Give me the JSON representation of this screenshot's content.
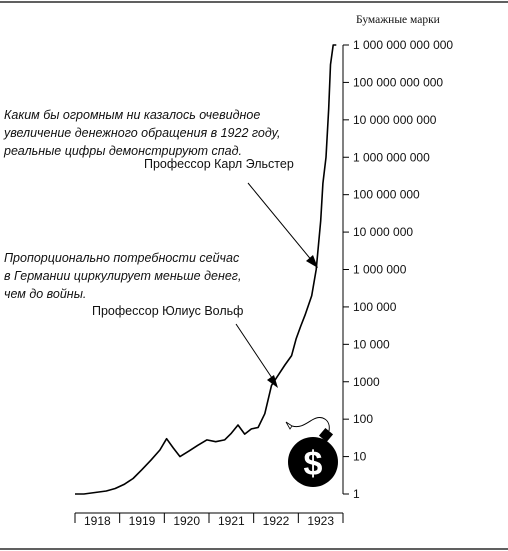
{
  "chart_data": {
    "type": "line",
    "title": "",
    "y_unit_title": "Бумажные марки",
    "xlabel": "",
    "ylabel": "",
    "y_scale": "log",
    "ylim": [
      1,
      1000000000000
    ],
    "y_ticks": [
      {
        "value": 1,
        "label": "1"
      },
      {
        "value": 10,
        "label": "10"
      },
      {
        "value": 100,
        "label": "100"
      },
      {
        "value": 1000,
        "label": "1000"
      },
      {
        "value": 10000,
        "label": "10 000"
      },
      {
        "value": 100000,
        "label": "100 000"
      },
      {
        "value": 1000000,
        "label": "1 000 000"
      },
      {
        "value": 10000000,
        "label": "10 000 000"
      },
      {
        "value": 100000000,
        "label": "100 000 000"
      },
      {
        "value": 1000000000,
        "label": "1 000 000 000"
      },
      {
        "value": 10000000000,
        "label": "10 000 000 000"
      },
      {
        "value": 100000000000,
        "label": "100 000 000 000"
      },
      {
        "value": 1000000000000,
        "label": "1 000 000 000 000"
      }
    ],
    "x_ticks": [
      "1918",
      "1919",
      "1920",
      "1921",
      "1922",
      "1923"
    ],
    "xlim": [
      1918.0,
      1924.0
    ],
    "grid": false,
    "legend": "none",
    "series": [
      {
        "x": [
          1918.0,
          1918.2,
          1918.45,
          1918.7,
          1918.9,
          1919.1,
          1919.3,
          1919.5,
          1919.7,
          1919.9,
          1920.05,
          1920.2,
          1920.35,
          1920.55,
          1920.75,
          1920.95,
          1921.15,
          1921.35,
          1921.5,
          1921.65,
          1921.8,
          1921.95,
          1922.1,
          1922.25,
          1922.4,
          1922.55,
          1922.7,
          1922.85,
          1922.95,
          1923.05,
          1923.15,
          1923.3,
          1923.4,
          1923.5,
          1923.55,
          1923.62,
          1923.68,
          1923.72,
          1923.78,
          1923.85
        ],
        "y": [
          1.0,
          1.0,
          1.1,
          1.2,
          1.4,
          1.8,
          2.6,
          4.5,
          8,
          15,
          30,
          17,
          10,
          14,
          20,
          28,
          25,
          28,
          42,
          70,
          40,
          55,
          60,
          140,
          800,
          1500,
          2800,
          5000,
          14000,
          30000,
          60000,
          200000,
          1000000,
          20000000,
          200000000,
          1000000000,
          20000000000,
          300000000000,
          1000000000000,
          1000000000000
        ],
        "color": "#000000"
      }
    ],
    "annotations": [
      {
        "quote": "Каким бы огромным ни казалось очевидное\nувеличение денежного обращения в 1922 году,\nреальные цифры демонстрируют спад.",
        "author": "Профессор Карл Эльстер",
        "arrow_to": {
          "x": 1923.4,
          "y": 1000000
        }
      },
      {
        "quote": "Пропорционально потребности сейчас\nв Германии циркулирует меньше денег,\nчем до войны.",
        "author": "Профессор Юлиус Вольф",
        "arrow_to": {
          "x": 1922.7,
          "y": 500
        }
      }
    ],
    "icon": "bomb-dollar-icon",
    "line_color": "#000000"
  }
}
